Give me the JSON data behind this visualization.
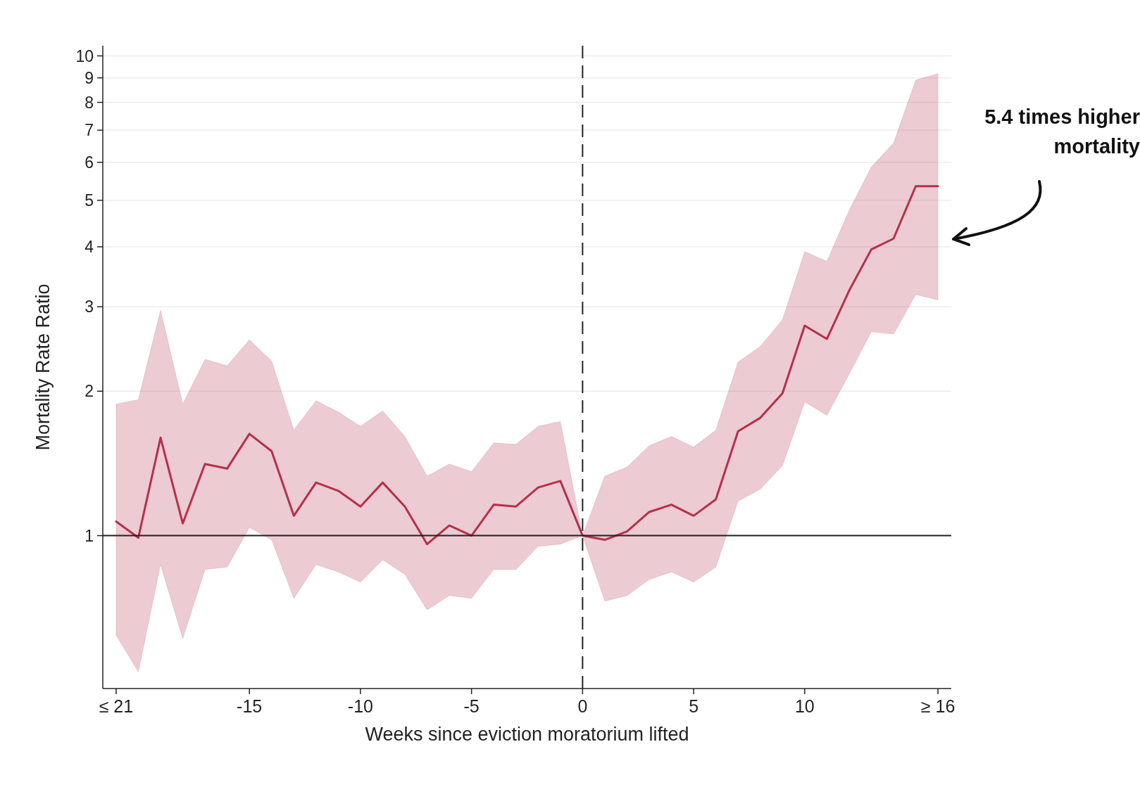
{
  "chart_data": {
    "type": "line",
    "xlabel": "Weeks since eviction moratorium lifted",
    "ylabel": "Mortality Rate Ratio",
    "log": "y",
    "grid": "y",
    "xlim": [
      -21.6,
      16.6
    ],
    "ylim": [
      0.48,
      10.5
    ],
    "xticks": [
      {
        "value": -21,
        "label": "≤ 21"
      },
      -15,
      -10,
      -5,
      0,
      5,
      10,
      {
        "value": 16,
        "label": "≥ 16"
      }
    ],
    "yticks": [
      1,
      2,
      3,
      4,
      5,
      6,
      7,
      8,
      9,
      10
    ],
    "x": [
      -21,
      -20,
      -19,
      -18,
      -17,
      -16,
      -15,
      -14,
      -13,
      -12,
      -11,
      -10,
      -9,
      -8,
      -7,
      -6,
      -5,
      -4,
      -3,
      -2,
      -1,
      0,
      1,
      2,
      3,
      4,
      5,
      6,
      7,
      8,
      9,
      10,
      11,
      12,
      13,
      14,
      15,
      16
    ],
    "series": [
      {
        "color": "#b5304a",
        "values": [
          1.07,
          0.99,
          1.6,
          1.06,
          1.41,
          1.38,
          1.63,
          1.5,
          1.1,
          1.29,
          1.24,
          1.15,
          1.29,
          1.15,
          0.96,
          1.05,
          1.0,
          1.16,
          1.15,
          1.26,
          1.3,
          1.0,
          0.98,
          1.02,
          1.12,
          1.16,
          1.1,
          1.19,
          1.65,
          1.76,
          1.98,
          2.74,
          2.57,
          3.24,
          3.95,
          4.16,
          5.35,
          5.35
        ],
        "lower": [
          0.62,
          0.52,
          0.87,
          0.61,
          0.85,
          0.86,
          1.04,
          0.98,
          0.74,
          0.87,
          0.84,
          0.8,
          0.89,
          0.83,
          0.7,
          0.75,
          0.74,
          0.85,
          0.85,
          0.95,
          0.96,
          1.0,
          0.73,
          0.75,
          0.81,
          0.84,
          0.8,
          0.86,
          1.18,
          1.25,
          1.4,
          1.9,
          1.78,
          2.17,
          2.66,
          2.63,
          3.18,
          3.1
        ],
        "upper": [
          1.88,
          1.92,
          2.95,
          1.88,
          2.33,
          2.26,
          2.56,
          2.31,
          1.66,
          1.91,
          1.81,
          1.69,
          1.82,
          1.61,
          1.33,
          1.41,
          1.36,
          1.56,
          1.55,
          1.69,
          1.73,
          1.0,
          1.33,
          1.39,
          1.54,
          1.61,
          1.53,
          1.66,
          2.3,
          2.48,
          2.82,
          3.91,
          3.73,
          4.76,
          5.87,
          6.58,
          8.91,
          9.18
        ]
      }
    ],
    "ref_lines": [
      {
        "axis": "y",
        "value": 1,
        "color": "#222222",
        "line_style": "solid"
      },
      {
        "axis": "x",
        "value": 0,
        "color": "#222222",
        "line_style": "dashed"
      }
    ],
    "annotations": [
      {
        "text": "5.4 times higher mortality",
        "x": 16,
        "y": 5.4
      }
    ]
  }
}
